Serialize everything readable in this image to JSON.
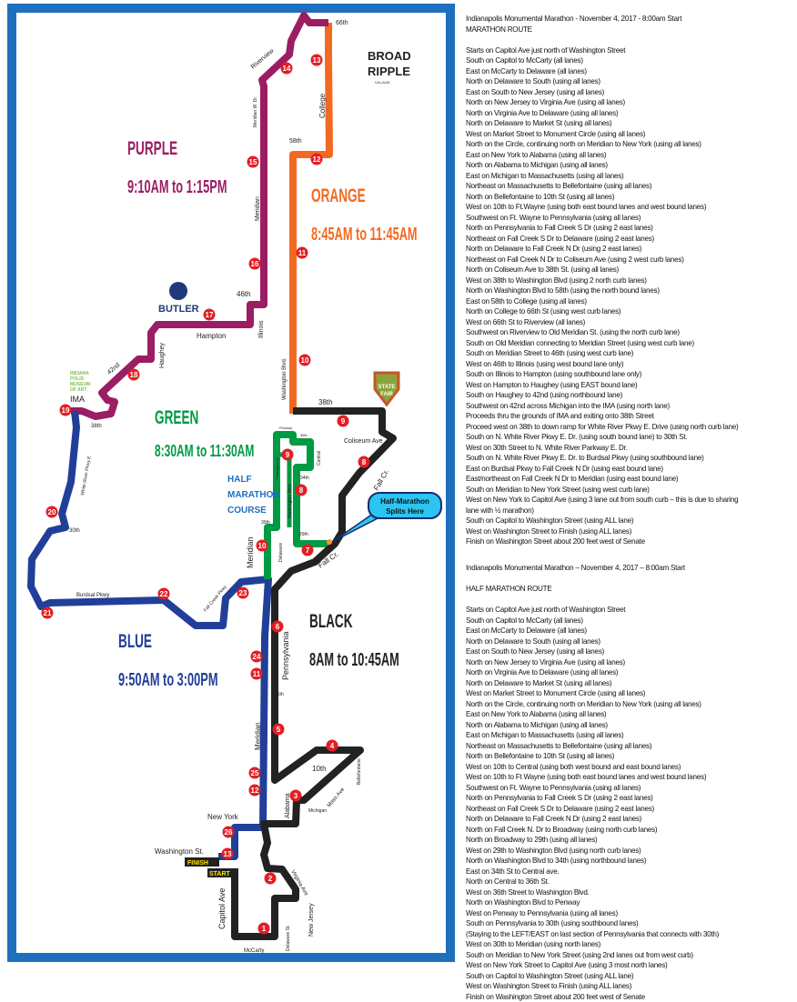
{
  "colors": {
    "frame": "#1f6fbf",
    "orange": "#f26a21",
    "purple": "#9b1d64",
    "blue": "#213f99",
    "green": "#009a44",
    "black": "#222222",
    "marker": "#e31e24",
    "callout": "#2bc4f3"
  },
  "map": {
    "zones": [
      {
        "name": "PURPLE",
        "time": "9:10AM to 1:15PM"
      },
      {
        "name": "ORANGE",
        "time": "8:45AM to 11:45AM"
      },
      {
        "name": "GREEN",
        "time": "8:30AM to 11:30AM"
      },
      {
        "name": "BLUE",
        "time": "9:50AM to 3:00PM"
      },
      {
        "name": "BLACK",
        "time": "8AM to 10:45AM"
      }
    ],
    "half_course": [
      "HALF",
      "MARATHON",
      "COURSE"
    ],
    "callout": [
      "Half-Marathon",
      "Splits Here"
    ],
    "finish": "FINISH",
    "start": "START",
    "landmarks": {
      "broad_ripple": "Broad Ripple Village",
      "butler": "BUTLER",
      "ima": "INDIANAPOLIS MUSEUM OF ART",
      "ima_short": "IMA",
      "state_fair": "STATE FAIR"
    },
    "roads": [
      "66th",
      "Riverview",
      "Meridian W. Dr.",
      "College",
      "58th",
      "Meridian",
      "46th",
      "Illinois",
      "Hampton",
      "Haughey",
      "42nd",
      "38th",
      "Washington Blvd.",
      "38th",
      "Coliseum Ave",
      "Fall Cr.",
      "Penway",
      "36th",
      "Central",
      "Pennsylvania",
      "34th",
      "Washington Blvd",
      "White River Pkwy E",
      "30th",
      "30th",
      "29th",
      "Meridian",
      "Delaware",
      "Fall Cr.",
      "Fall Creek Pkwy",
      "Burdsal Pkwy",
      "Pennsylvania",
      "16th",
      "Meridian",
      "10th",
      "Bellefontaine",
      "Mass Ave",
      "Alabama",
      "Michigan",
      "New York",
      "Washington St.",
      "Virginia Ave",
      "Capitol Ave",
      "Delaware St.",
      "New Jersey",
      "McCarty"
    ],
    "markers": [
      "13",
      "14",
      "12",
      "15",
      "11",
      "16",
      "17",
      "10",
      "18",
      "19",
      "9",
      "9",
      "8",
      "8",
      "20",
      "10",
      "7",
      "22",
      "23",
      "21",
      "6",
      "24",
      "11",
      "5",
      "4",
      "25",
      "12",
      "3",
      "26",
      "13",
      "2",
      "1"
    ]
  },
  "marathon": {
    "title": "Indianapolis Monumental Marathon - November 4, 2017 - 8:00am Start",
    "subtitle": "MARATHON ROUTE",
    "lines": [
      "Starts on Capitol Ave just north of Washington Street",
      "South on Capitol to McCarty (all lanes)",
      "East on McCarty to Delaware (all lanes)",
      "North on Delaware to South (using all lanes)",
      "East on South to New Jersey (using all lanes)",
      "North on New Jersey to Virginia Ave (using all lanes)",
      "North on Virginia Ave to Delaware (using all lanes)",
      "North on Delaware to Market St (using all lanes)",
      "West on Market Street to Monument Circle (using all lanes)",
      "North on the Circle, continuing north on Meridian to New York (using all lanes)",
      "East on New York to Alabama (using all lanes)",
      "North on Alabama to Michigan (using all lanes)",
      "East on Michigan to Massachusetts (using all lanes)",
      "Northeast on Massachusetts to Bellefontaine (using all lanes)",
      "North on Bellefontaine to 10th St (using all lanes)",
      "West on 10th to Ft.Wayne (using both east bound lanes and west bound lanes)",
      "Southwest on Ft. Wayne to Pennsylvania (using all lanes)",
      "North on Pennsylvania to Fall Creek S Dr (using 2 east lanes)",
      "Northeast on Fall Creek S Dr to Delaware (using 2 east lanes)",
      "North on Delaware to Fall Creek N Dr (using 2 east lanes)",
      "Northeast on Fall Creek N Dr to Coliseum Ave (using 2 west curb lanes)",
      "North on Coliseum Ave to 38th St. (using all lanes)",
      "West on 38th to Washington Blvd (using 2 north curb lanes)",
      "North on Washington Blvd to 58th (using the north bound lanes)",
      "East on 58th to College (using all lanes)",
      "North on College to 66th St (using west curb lanes)",
      "West on 66th St to Riverview (all lanes)",
      "Southwest on Riverview to Old Meridian St. (using the north curb lane)",
      "South on Old Meridian connecting to Meridian Street (using west curb lane)",
      "South on Meridian Street to 46th (using west curb lane)",
      "West on 46th to Illinois (using west bound lane only)",
      "South on Illinois to Hampton (using southbound lane only)",
      "West on Hampton to Haughey (using EAST bound lane)",
      "South on Haughey to 42nd (using northbound lane)",
      "Southwest on 42nd across Michigan into the IMA (using north lane)",
      "Proceeds thru the grounds of IMA and exiting onto 38th Street",
      "Proceed west on 38th to down ramp for White River Pkwy E. Drive (using north curb lane)",
      "South on N. White River Pkwy E. Dr. (using south bound lane) to 30th St.",
      "West on 30th Street to N. White River Parkway E. Dr.",
      "South on N. White River Pkwy E. Dr. to Burdsal Pkwy (using southbound lane)",
      "East on Burdsal Pkwy to Fall Creek N Dr (using east bound lane)",
      "East/northeast on Fall Creek N Dr to Meridian (using east bound lane)",
      "South on Meridian to New York Street (using west curb lane)",
      "West on New York to Capitol Ave (using 3 lane out from south curb – this is due to sharing",
      "lane with ½ marathon)",
      "South on Capitol to Washington Street (using ALL lane)",
      "West on Washington Street to Finish (using ALL lanes)",
      "Finish on Washington Street about 200 feet west of Senate"
    ]
  },
  "half": {
    "title": "Indianapolis Monumental Marathon – November 4, 2017 – 8:00am Start",
    "subtitle": "HALF MARATHON ROUTE",
    "lines": [
      "Starts on Capitol Ave just north of Washington Street",
      "South on Capitol to McCarty (all lanes)",
      "East on McCarty to Delaware (all lanes)",
      "North on Delaware to South (using all lanes)",
      "East on South to New Jersey (using all lanes)",
      "North on New Jersey to Virginia Ave (using all lanes)",
      "North on Virginia Ave to Delaware (using all lanes)",
      "North on Delaware to Market St (using all lanes)",
      "West on Market Street to Monument Circle (using all lanes)",
      "North on the Circle, continuing north on Meridian to New York (using all lanes)",
      "East on New York to Alabama (using all lanes)",
      "North on Alabama to Michigan (using all lanes)",
      "East on Michigan to Massachusetts (using all lanes)",
      "Northeast on Massachusetts to Bellefontaine (using all lanes)",
      "North on Bellefontaine to 10th St (using all lanes)",
      "West on 10th to Central (using both west bound and east bound lanes)",
      "West on 10th to Ft Wayne (using both east bound lanes and west bound lanes)",
      "Southwest on Ft. Wayne to Pennsylvania (using all lanes)",
      "North on Pennsylvania to Fall Creek S Dr (using 2 east lanes)",
      "Northeast on Fall Creek S Dr to Delaware (using 2 east lanes)",
      "North on Delaware to Fall Creek N Dr (using 2 east lanes)",
      "North on Fall Creek N. Dr to Broadway (using north curb lanes)",
      "North on Broadway to 29th (using all lanes)",
      "West on 29th to Washington Blvd (using north curb lanes)",
      "North on Washington Blvd to 34th (using northbound lanes)",
      "East on 34th St to Central ave.",
      "North on Central to 36th St.",
      "West on 36th Street to Washington Blvd.",
      "North on Washington Blvd to Penway",
      "West on Penway to Pennsylvania (using all lanes)",
      "South on Pennsylvania to 30th (using southbound lanes)",
      "(Staying to the LEFT/EAST on last section of Pennsylvania that connects with 30th)",
      "West on 30th to Meridian (using north lanes)",
      "South on Meridian to New York Street (using 2nd lanes out from west curb)",
      "West on New York Street to Capitol Ave (using 3 most north lanes)",
      "South on Capitol to Washington Street (using ALL lane)",
      "West on Washington Street to Finish (using ALL lanes)",
      "Finish on Washington Street about 200 feet west of Senate"
    ]
  }
}
